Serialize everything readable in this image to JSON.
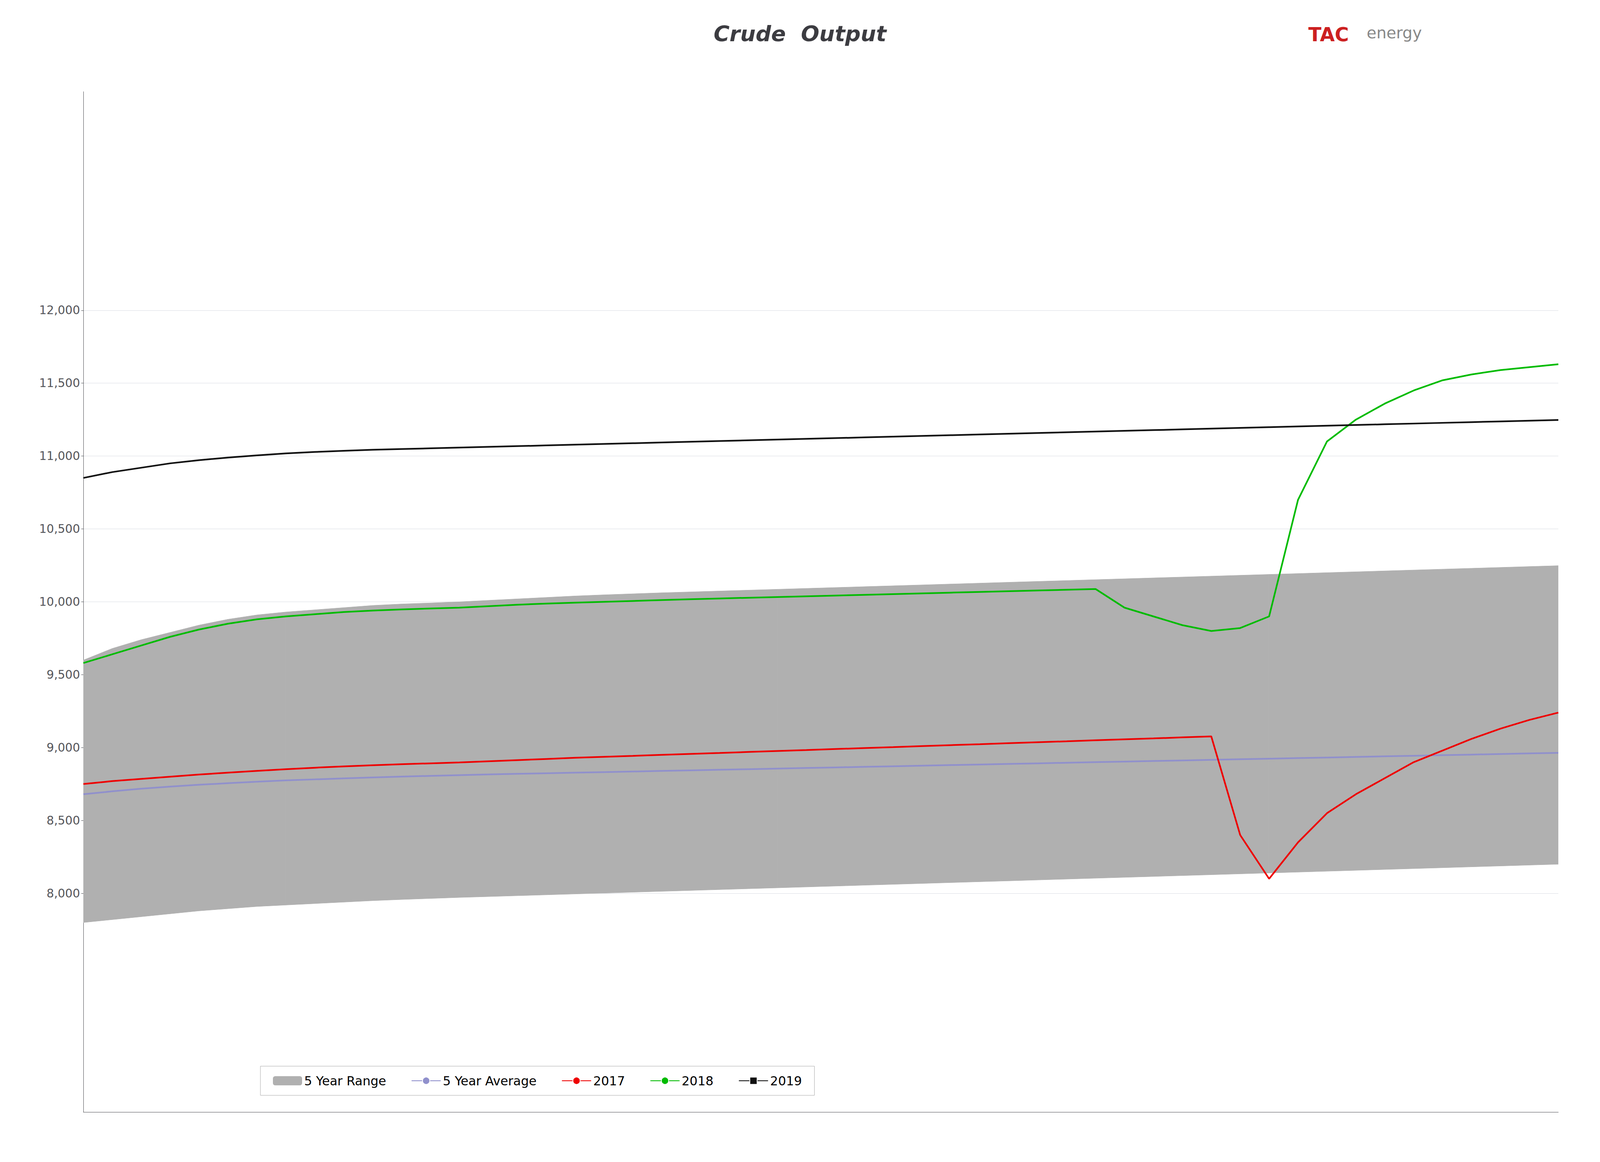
{
  "chart_data": {
    "type": "line",
    "title": "Crude  Output",
    "annotations": [
      {
        "text": "TAC",
        "color": "#cc2020"
      },
      {
        "text": "energy",
        "color": "#888888"
      }
    ],
    "categories": [
      null,
      null,
      null,
      null,
      null,
      null,
      null,
      null,
      null,
      null,
      null,
      null,
      null,
      null,
      null,
      null,
      null,
      null,
      null,
      null,
      null,
      null,
      null,
      null,
      null,
      null,
      null,
      null,
      null,
      null,
      null,
      null,
      null,
      null,
      null,
      null,
      null,
      null,
      null,
      null,
      null,
      null,
      null,
      null,
      null,
      null,
      null,
      null,
      null,
      null,
      null,
      null
    ],
    "series": [
      {
        "name": "5 Year Range",
        "type": "range",
        "color": "#b0b0b0",
        "lower": [
          7800,
          7820,
          7840,
          7860,
          7880,
          7895,
          7910,
          7920,
          7930,
          7940,
          7950,
          7958,
          7965,
          7972,
          7978,
          7984,
          7990,
          7996,
          8002,
          8008,
          8014,
          8020,
          8026,
          8032,
          8038,
          8044,
          8050,
          8056,
          8062,
          8068,
          8074,
          8080,
          8086,
          8092,
          8098,
          8104,
          8110,
          8116,
          8122,
          8128,
          8134,
          8140,
          8146,
          8152,
          8158,
          8164,
          8170,
          8176,
          8182,
          8188,
          8194,
          8200
        ],
        "upper": [
          9600,
          9680,
          9740,
          9790,
          9840,
          9880,
          9910,
          9930,
          9945,
          9960,
          9975,
          9985,
          9992,
          10000,
          10010,
          10020,
          10030,
          10040,
          10048,
          10055,
          10062,
          10068,
          10074,
          10080,
          10086,
          10092,
          10098,
          10104,
          10110,
          10116,
          10122,
          10128,
          10134,
          10140,
          10146,
          10152,
          10158,
          10164,
          10170,
          10176,
          10182,
          10188,
          10194,
          10200,
          10206,
          10212,
          10218,
          10224,
          10230,
          10236,
          10242,
          10248
        ]
      },
      {
        "name": "5 Year Average",
        "type": "line",
        "color": "#9090cc",
        "values": [
          8680,
          8700,
          8718,
          8732,
          8745,
          8756,
          8766,
          8775,
          8782,
          8789,
          8795,
          8801,
          8806,
          8811,
          8816,
          8820,
          8824,
          8828,
          8832,
          8836,
          8840,
          8844,
          8848,
          8852,
          8856,
          8860,
          8864,
          8868,
          8872,
          8876,
          8880,
          8884,
          8888,
          8892,
          8896,
          8900,
          8904,
          8908,
          8912,
          8916,
          8920,
          8924,
          8928,
          8932,
          8936,
          8940,
          8944,
          8948,
          8952,
          8956,
          8960,
          8964
        ]
      },
      {
        "name": "2017",
        "type": "line",
        "color": "#ee0000",
        "values": [
          8750,
          8770,
          8785,
          8800,
          8815,
          8828,
          8840,
          8852,
          8862,
          8871,
          8879,
          8886,
          8892,
          8898,
          8906,
          8914,
          8922,
          8930,
          8937,
          8943,
          8950,
          8957,
          8963,
          8970,
          8977,
          8983,
          8990,
          8997,
          9003,
          9010,
          9017,
          9023,
          9030,
          9037,
          9043,
          9050,
          9057,
          9063,
          9070,
          9077,
          8400,
          8100,
          8350,
          8550,
          8680,
          8790,
          8900,
          8980,
          9060,
          9130,
          9190,
          9240
        ]
      },
      {
        "name": "2018",
        "type": "line",
        "color": "#00bb00",
        "values": [
          9580,
          9640,
          9700,
          9760,
          9810,
          9850,
          9880,
          9900,
          9915,
          9930,
          9940,
          9948,
          9954,
          9960,
          9970,
          9980,
          9988,
          9994,
          10000,
          10006,
          10012,
          10018,
          10023,
          10028,
          10033,
          10038,
          10043,
          10048,
          10053,
          10058,
          10063,
          10068,
          10073,
          10078,
          10083,
          10088,
          9960,
          9900,
          9840,
          9800,
          9820,
          9900,
          10700,
          11100,
          11250,
          11360,
          11450,
          11520,
          11560,
          11590,
          11610,
          11630
        ]
      },
      {
        "name": "2019",
        "type": "line",
        "color": "#111111",
        "marker": "square",
        "values": [
          10850,
          10890,
          10920,
          10950,
          10972,
          10990,
          11005,
          11018,
          11028,
          11036,
          11043,
          11048,
          11053,
          11058,
          11063,
          11068,
          11073,
          11078,
          11083,
          11088,
          11093,
          11098,
          11103,
          11108,
          11113,
          11118,
          11123,
          11128,
          11133,
          11138,
          11143,
          11148,
          11153,
          11158,
          11163,
          11168,
          11173,
          11178,
          11183,
          11188,
          11193,
          11198,
          11203,
          11208,
          11213,
          11218,
          11223,
          11228,
          11233,
          11238,
          11243,
          11248
        ]
      }
    ],
    "ylim": [
      6500,
      13500
    ],
    "yticks": [
      {
        "value": 8000,
        "label": "8,000"
      },
      {
        "value": 8500,
        "label": "8,500"
      },
      {
        "value": 9000,
        "label": "9,000"
      },
      {
        "value": 9500,
        "label": "9,500"
      },
      {
        "value": 10000,
        "label": "10,000"
      },
      {
        "value": 10500,
        "label": "10,500"
      },
      {
        "value": 11000,
        "label": "11,000"
      },
      {
        "value": 11500,
        "label": "11,500"
      },
      {
        "value": 12000,
        "label": "12,000"
      }
    ],
    "grid": true,
    "legend": "lower left",
    "tick_labels": "y"
  }
}
